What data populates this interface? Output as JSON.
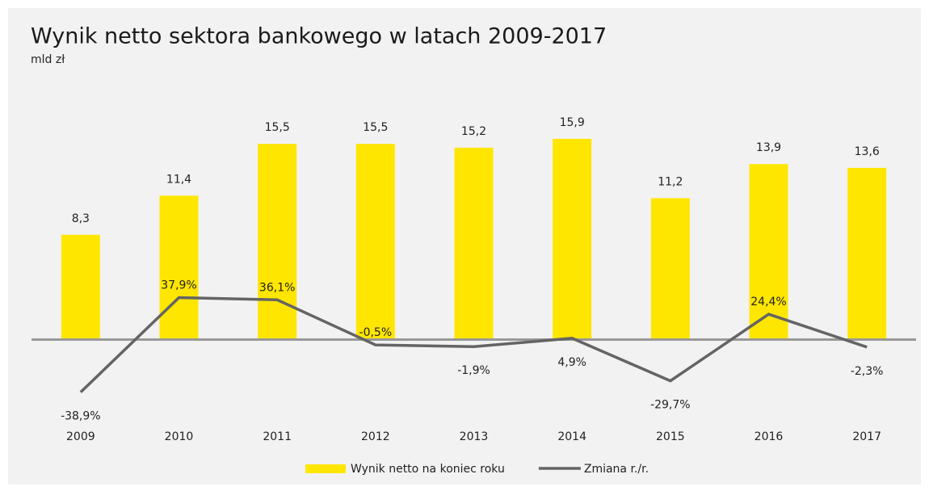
{
  "chart_data": {
    "type": "bar_line",
    "title": "Wynik netto sektora bankowego w latach 2009-2017",
    "subtitle": "mld zł",
    "categories": [
      "2009",
      "2010",
      "2011",
      "2012",
      "2013",
      "2014",
      "2015",
      "2016",
      "2017"
    ],
    "series": [
      {
        "name": "Wynik netto na koniec roku",
        "type": "bar",
        "color": "#ffe600",
        "values": [
          8.3,
          11.4,
          15.5,
          15.5,
          15.2,
          15.9,
          11.2,
          13.9,
          13.6
        ],
        "value_labels": [
          "8,3",
          "11,4",
          "15,5",
          "15,5",
          "15,2",
          "15,9",
          "11,2",
          "13,9",
          "13,6"
        ]
      },
      {
        "name": "Zmiana r./r.",
        "type": "line",
        "axis": "y2",
        "color": "#646464",
        "values": [
          -38.9,
          37.9,
          36.1,
          -0.5,
          -1.9,
          4.9,
          -29.7,
          24.4,
          -2.3
        ],
        "value_labels": [
          "-38,9%",
          "37,9%",
          "36,1%",
          "-0,5%",
          "-1,9%",
          "4,9%",
          "-29,7%",
          "24,4%",
          "-2,3%"
        ]
      }
    ],
    "ylim": [
      -7,
      20.5
    ],
    "y2lim": [
      -68,
      214
    ],
    "zero_line_color": "#999999"
  }
}
